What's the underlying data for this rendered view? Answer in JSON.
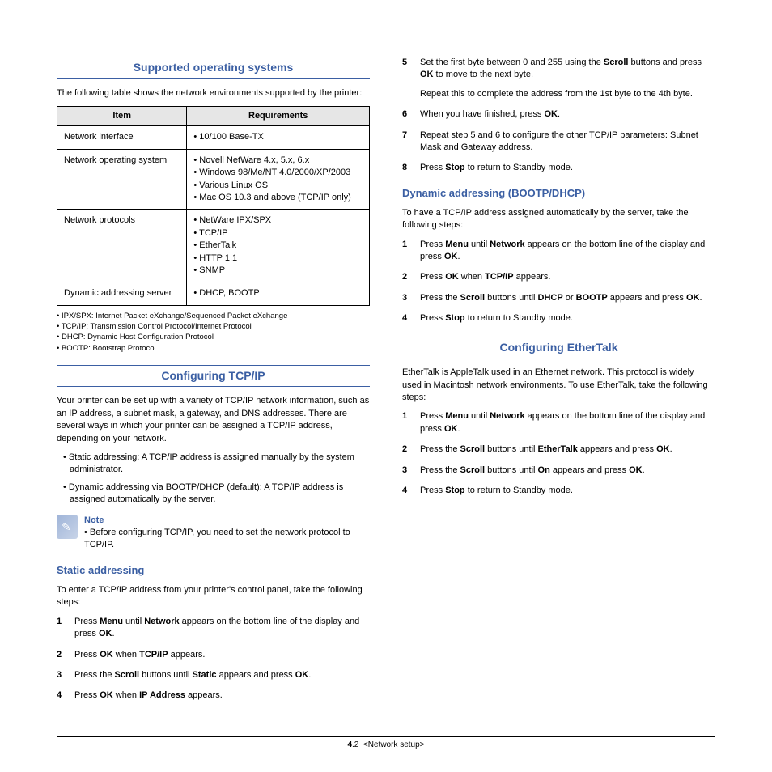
{
  "colors": {
    "accent": "#3b5fa3",
    "table_header_bg": "#e6e6e6",
    "border": "#000000",
    "background": "#ffffff"
  },
  "left": {
    "sec1": {
      "heading": "Supported operating systems",
      "intro": "The following table shows the network environments supported by the printer:",
      "table": {
        "col1": "Item",
        "col2": "Requirements",
        "r1c1": "Network interface",
        "r1i1": "10/100 Base-TX",
        "r2c1": "Network operating system",
        "r2i1": "Novell NetWare 4.x, 5.x, 6.x",
        "r2i2": "Windows 98/Me/NT 4.0/2000/XP/2003",
        "r2i3": "Various Linux OS",
        "r2i4": "Mac OS 10.3 and above (TCP/IP only)",
        "r3c1": "Network protocols",
        "r3i1": "NetWare IPX/SPX",
        "r3i2": "TCP/IP",
        "r3i3": "EtherTalk",
        "r3i4": "HTTP 1.1",
        "r3i5": "SNMP",
        "r4c1": "Dynamic addressing server",
        "r4i1": "DHCP, BOOTP"
      },
      "fn1": "IPX/SPX: Internet Packet eXchange/Sequenced Packet eXchange",
      "fn2": "TCP/IP: Transmission Control Protocol/Internet Protocol",
      "fn3": "DHCP: Dynamic Host Configuration Protocol",
      "fn4": "BOOTP: Bootstrap Protocol"
    },
    "sec2": {
      "heading": "Configuring TCP/IP",
      "intro": "Your printer can be set up with a variety of TCP/IP network information, such as an IP address, a subnet mask, a gateway, and DNS addresses. There are several ways in which your printer can be assigned a TCP/IP address, depending on your network.",
      "b1": "Static addressing: A TCP/IP address is assigned manually by the system administrator.",
      "b2": "Dynamic addressing via BOOTP/DHCP (default): A TCP/IP address is assigned automatically by the server.",
      "note_title": "Note",
      "note_text": "Before configuring TCP/IP, you need to set the network protocol to TCP/IP.",
      "sub": "Static addressing",
      "sub_intro": "To enter a TCP/IP address from your printer's control panel, take the following steps:"
    }
  },
  "right": {
    "sub1": "Dynamic addressing (BOOTP/DHCP)",
    "sub1_intro": "To have a TCP/IP address assigned automatically by the server, take the following steps:",
    "sec3": {
      "heading": "Configuring EtherTalk",
      "intro": "EtherTalk is AppleTalk used in an Ethernet network. This protocol is widely used in Macintosh network environments. To use EtherTalk, take the following steps:"
    }
  },
  "footer": {
    "chapter": "4",
    "page": ".2",
    "label": "<Network setup>"
  }
}
